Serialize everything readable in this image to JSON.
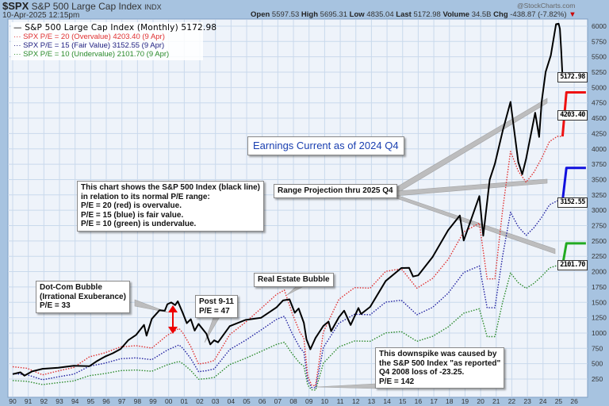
{
  "header": {
    "symbol": "$SPX",
    "name": "S&P 500 Large Cap Index",
    "exchange": "INDX",
    "datetime": "10-Apr-2025 12:15pm",
    "watermark": "@StockCharts.com",
    "open_label": "Open",
    "open": "5597.53",
    "high_label": "High",
    "high": "5695.31",
    "low_label": "Low",
    "low": "4835.04",
    "last_label": "Last",
    "last": "5172.98",
    "volume_label": "Volume",
    "volume": "34.5B",
    "chg_label": "Chg",
    "chg": "-438.87 (-7.82%)",
    "chg_icon": "triangle-down-icon"
  },
  "legend": [
    {
      "marker": "—",
      "text": "S&P 500 Large Cap Index (Monthly) 5172.98",
      "color": "#000000"
    },
    {
      "marker": "···",
      "text": "SPX P/E = 20 (Overvalue) 4203.40 (9 Apr)",
      "color": "#e03030"
    },
    {
      "marker": "···",
      "text": "SPX P/E = 15 (Fair Value) 3152.55 (9 Apr)",
      "color": "#202080"
    },
    {
      "marker": "···",
      "text": "SPX P/E = 10 (Undervalue) 2101.70 (9 Apr)",
      "color": "#2a8a2a"
    }
  ],
  "value_labels": [
    "5172.98",
    "4203.40",
    "3152.55",
    "2101.70"
  ],
  "annotations": {
    "earnings": "Earnings Current as of 2024 Q4",
    "description": [
      "This chart shows the S&P 500 Index (black line)",
      "in relation to its normal P/E range:",
      "P/E = 20 (red) is overvalue.",
      "P/E = 15 (blue) is fair value.",
      "P/E = 10 (green) is undervalue."
    ],
    "projection": "Range Projection thru 2025 Q4",
    "dotcom": [
      "Dot-Com Bubble",
      "(Irrational Exuberance)",
      "P/E = 33"
    ],
    "post911": [
      "Post 9-11",
      "P/E = 47"
    ],
    "realestate": "Real Estate Bubble",
    "downspike": [
      "This downspike was caused by",
      "the S&P 500 Index \"as reported\"",
      "Q4 2008 loss of -23.25.",
      "P/E = 142"
    ]
  },
  "colors": {
    "index": "#000000",
    "pe20": "#e03030",
    "pe15": "#2020a0",
    "pe10": "#2a8a2a",
    "proj20": "#ee1111",
    "proj15": "#1010dd",
    "proj10": "#22aa22",
    "earnings_text": "#1a3fb0",
    "grid": "#c9d9ec",
    "plot_bg": "#eef3fa"
  },
  "chart_data": {
    "type": "line",
    "x_tick_labels": [
      "90",
      "91",
      "92",
      "93",
      "94",
      "95",
      "96",
      "97",
      "98",
      "99",
      "00",
      "01",
      "02",
      "03",
      "04",
      "05",
      "06",
      "07",
      "08",
      "09",
      "10",
      "11",
      "12",
      "13",
      "14",
      "15",
      "16",
      "17",
      "18",
      "19",
      "20",
      "21",
      "22",
      "23",
      "24",
      "25",
      "26"
    ],
    "y_ticks": [
      250,
      500,
      750,
      1000,
      1250,
      1500,
      1750,
      2000,
      2250,
      2500,
      2750,
      3000,
      3250,
      3500,
      3750,
      4000,
      4250,
      4500,
      4750,
      5000,
      5250,
      5500,
      5750,
      6000
    ],
    "y_axis_side": "right",
    "xlim": [
      "1990-01",
      "2026-10"
    ],
    "ylim": [
      -34,
      6110
    ],
    "grid": true,
    "legend_placement": "top-left",
    "series": [
      {
        "name": "S&P 500 Large Cap Index (Monthly)",
        "key": "index",
        "style": "solid",
        "x": [
          "1990-01",
          "1990-07",
          "1990-10",
          "1991-04",
          "1991-12",
          "1992-12",
          "1993-12",
          "1994-12",
          "1995-06",
          "1995-12",
          "1996-06",
          "1996-12",
          "1997-06",
          "1997-12",
          "1998-06",
          "1998-08",
          "1998-12",
          "1999-06",
          "1999-10",
          "1999-12",
          "2000-03",
          "2000-06",
          "2000-08",
          "2000-12",
          "2001-03",
          "2001-06",
          "2001-09",
          "2001-12",
          "2002-06",
          "2002-09",
          "2002-12",
          "2003-03",
          "2003-12",
          "2004-12",
          "2005-12",
          "2006-12",
          "2007-05",
          "2007-10",
          "2008-02",
          "2008-05",
          "2008-09",
          "2008-11",
          "2009-02",
          "2009-06",
          "2009-12",
          "2010-04",
          "2010-06",
          "2010-12",
          "2011-04",
          "2011-09",
          "2012-03",
          "2012-05",
          "2012-12",
          "2013-12",
          "2014-12",
          "2015-06",
          "2015-09",
          "2016-01",
          "2016-12",
          "2017-12",
          "2018-09",
          "2018-12",
          "2019-12",
          "2020-03",
          "2020-08",
          "2020-12",
          "2021-06",
          "2021-12",
          "2022-06",
          "2022-09",
          "2022-12",
          "2023-07",
          "2023-10",
          "2023-12",
          "2024-03",
          "2024-07",
          "2024-11",
          "2025-01",
          "2025-02",
          "2025-03",
          "2025-04"
        ],
        "values": [
          330,
          360,
          305,
          375,
          417,
          435,
          466,
          459,
          545,
          615,
          670,
          740,
          885,
          970,
          1133,
          957,
          1229,
          1372,
          1362,
          1469,
          1498,
          1454,
          1517,
          1320,
          1160,
          1224,
          1040,
          1148,
          990,
          815,
          880,
          848,
          1112,
          1212,
          1248,
          1418,
          1530,
          1549,
          1330,
          1400,
          1166,
          896,
          735,
          919,
          1115,
          1187,
          1031,
          1258,
          1364,
          1131,
          1408,
          1310,
          1426,
          1848,
          2059,
          2063,
          1920,
          1940,
          2239,
          2674,
          2914,
          2507,
          3231,
          2585,
          3500,
          3756,
          4297,
          4766,
          3785,
          3586,
          3840,
          4589,
          4194,
          4770,
          5254,
          5522,
          6032,
          6040,
          5955,
          5612,
          5172.98
        ]
      },
      {
        "name": "SPX P/E = 20 (Overvalue)",
        "key": "pe20",
        "style": "dotted",
        "x": [
          "1990-01",
          "1990-12",
          "1991-12",
          "1992-12",
          "1993-12",
          "1994-12",
          "1995-12",
          "1996-12",
          "1997-12",
          "1998-12",
          "1999-12",
          "2000-09",
          "2000-12",
          "2001-06",
          "2001-12",
          "2002-06",
          "2002-12",
          "2003-12",
          "2004-12",
          "2005-12",
          "2006-12",
          "2007-06",
          "2007-12",
          "2008-06",
          "2008-09",
          "2008-12",
          "2009-03",
          "2009-06",
          "2009-09",
          "2009-12",
          "2010-12",
          "2011-12",
          "2012-12",
          "2013-12",
          "2014-12",
          "2015-12",
          "2016-12",
          "2017-12",
          "2018-12",
          "2019-12",
          "2020-06",
          "2020-12",
          "2021-06",
          "2021-12",
          "2022-06",
          "2022-12",
          "2023-06",
          "2023-12",
          "2024-06",
          "2024-12",
          "2025-04"
        ],
        "values": [
          450,
          426,
          318,
          382,
          438,
          612,
          678,
          774,
          794,
          754,
          964,
          1074,
          1000,
          778,
          494,
          514,
          552,
          974,
          1172,
          1398,
          1630,
          1698,
          1324,
          1010,
          918,
          298,
          150,
          138,
          560,
          1018,
          1548,
          1740,
          1730,
          2004,
          2046,
          1730,
          1890,
          2198,
          2648,
          2790,
          1882,
          1882,
          3020,
          3958,
          3640,
          3456,
          3620,
          3848,
          4120,
          4204,
          4203.4
        ]
      },
      {
        "name": "SPX P/E = 15 (Fair Value)",
        "key": "pe15",
        "style": "dotted",
        "x": [
          "1990-01",
          "1990-12",
          "1991-12",
          "1992-12",
          "1993-12",
          "1994-12",
          "1995-12",
          "1996-12",
          "1997-12",
          "1998-12",
          "1999-12",
          "2000-09",
          "2000-12",
          "2001-06",
          "2001-12",
          "2002-06",
          "2002-12",
          "2003-12",
          "2004-12",
          "2005-12",
          "2006-12",
          "2007-06",
          "2007-12",
          "2008-06",
          "2008-09",
          "2008-12",
          "2009-03",
          "2009-06",
          "2009-09",
          "2009-12",
          "2010-12",
          "2011-12",
          "2012-12",
          "2013-12",
          "2014-12",
          "2015-12",
          "2016-12",
          "2017-12",
          "2018-12",
          "2019-12",
          "2020-06",
          "2020-12",
          "2021-06",
          "2021-12",
          "2022-06",
          "2022-12",
          "2023-06",
          "2023-12",
          "2024-06",
          "2024-12",
          "2025-04"
        ],
        "values": [
          337.5,
          319.5,
          238.5,
          286.5,
          328.5,
          459,
          508.5,
          580.5,
          595.5,
          565.5,
          723,
          805.5,
          750,
          583.5,
          370.5,
          385.5,
          414,
          730.5,
          879,
          1048.5,
          1222.5,
          1273.5,
          993,
          757.5,
          688.5,
          223.5,
          112.5,
          103.5,
          420,
          763.5,
          1161,
          1305,
          1297.5,
          1503,
          1534.5,
          1297.5,
          1417.5,
          1648.5,
          1986,
          2092.5,
          1411.5,
          1411.5,
          2265,
          2968.5,
          2730,
          2592,
          2715,
          2886,
          3090,
          3153,
          3152.55
        ]
      },
      {
        "name": "SPX P/E = 10 (Undervalue)",
        "key": "pe10",
        "style": "dotted",
        "x": [
          "1990-01",
          "1990-12",
          "1991-12",
          "1992-12",
          "1993-12",
          "1994-12",
          "1995-12",
          "1996-12",
          "1997-12",
          "1998-12",
          "1999-12",
          "2000-09",
          "2000-12",
          "2001-06",
          "2001-12",
          "2002-06",
          "2002-12",
          "2003-12",
          "2004-12",
          "2005-12",
          "2006-12",
          "2007-06",
          "2007-12",
          "2008-06",
          "2008-09",
          "2008-12",
          "2009-03",
          "2009-06",
          "2009-09",
          "2009-12",
          "2010-12",
          "2011-12",
          "2012-12",
          "2013-12",
          "2014-12",
          "2015-12",
          "2016-12",
          "2017-12",
          "2018-12",
          "2019-12",
          "2020-06",
          "2020-12",
          "2021-06",
          "2021-12",
          "2022-06",
          "2022-12",
          "2023-06",
          "2023-12",
          "2024-06",
          "2024-12",
          "2025-04"
        ],
        "values": [
          225,
          213,
          159,
          191,
          219,
          306,
          339,
          387,
          397,
          377,
          482,
          537,
          500,
          389,
          247,
          257,
          276,
          487,
          586,
          699,
          815,
          849,
          662,
          505,
          459,
          149,
          75,
          69,
          280,
          509,
          774,
          870,
          865,
          1002,
          1023,
          865,
          945,
          1099,
          1324,
          1395,
          941,
          941,
          1510,
          1979,
          1820,
          1728,
          1810,
          1924,
          2060,
          2102,
          2101.7
        ]
      },
      {
        "name": "",
        "key": "proj20",
        "style": "solid-thick",
        "x": [
          "2025-04",
          "2025-07",
          "2026-10"
        ],
        "values": [
          4203.4,
          4920,
          4920
        ]
      },
      {
        "name": "",
        "key": "proj15",
        "style": "solid-thick",
        "x": [
          "2025-04",
          "2025-07",
          "2026-10"
        ],
        "values": [
          3152.55,
          3690,
          3690
        ]
      },
      {
        "name": "",
        "key": "proj10",
        "style": "solid-thick",
        "x": [
          "2025-04",
          "2025-07",
          "2026-10"
        ],
        "values": [
          2101.7,
          2460,
          2460
        ]
      }
    ]
  }
}
